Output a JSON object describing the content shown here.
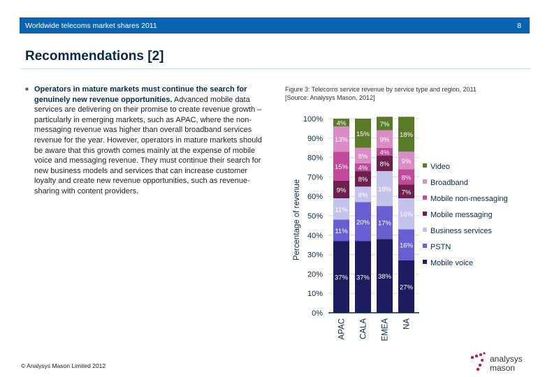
{
  "header": {
    "title": "Worldwide telecoms market shares 2011",
    "page_number": "8",
    "color": "#0c63ad"
  },
  "page_title": "Recommendations [2]",
  "body": {
    "bold": "Operators in mature markets must continue the search for genuinely new revenue opportunities.",
    "text": " Advanced mobile data services are delivering on their promise to create revenue growth – particularly in emerging markets, such as APAC, where the non-messaging revenue was higher than overall broadband services revenue for the year. However, operators in mature markets should be aware that this growth comes mainly at the expense of mobile voice and messaging revenue. They must continue their search for new business models and services that can increase customer loyalty and create new revenue opportunities, such as revenue-sharing with content providers."
  },
  "figure": {
    "caption_line1": "Figure 3: Telecoms service revenue by service type and region, 2011",
    "caption_line2": "[Source: Analysys Mason, 2012]"
  },
  "footer": "© Analysys Mason Limited 2012",
  "logo": "analysys mason",
  "chart_data": {
    "type": "bar",
    "stacked": true,
    "ylabel": "Percentage of revenue",
    "ylim": [
      0,
      100
    ],
    "yticks": [
      "0%",
      "10%",
      "20%",
      "30%",
      "40%",
      "50%",
      "60%",
      "70%",
      "80%",
      "90%",
      "100%"
    ],
    "grid": true,
    "legend_position": "right",
    "categories": [
      "APAC",
      "CALA",
      "EMEA",
      "NA"
    ],
    "series": [
      {
        "name": "Mobile voice",
        "color": "#1e1b5e",
        "values": [
          37,
          37,
          38,
          27
        ]
      },
      {
        "name": "PSTN",
        "color": "#6a5fd0",
        "values": [
          11,
          20,
          17,
          16
        ]
      },
      {
        "name": "Business services",
        "color": "#c4c3ec",
        "values": [
          11,
          8,
          18,
          16
        ]
      },
      {
        "name": "Mobile messaging",
        "color": "#6e1f4e",
        "values": [
          9,
          8,
          8,
          7
        ]
      },
      {
        "name": "Mobile non-messaging",
        "color": "#c0499a",
        "values": [
          15,
          4,
          4,
          8
        ]
      },
      {
        "name": "Broadband",
        "color": "#d98cc6",
        "values": [
          13,
          8,
          9,
          9
        ]
      },
      {
        "name": "Video",
        "color": "#5a7a2a",
        "values": [
          4,
          15,
          7,
          18
        ]
      }
    ]
  }
}
